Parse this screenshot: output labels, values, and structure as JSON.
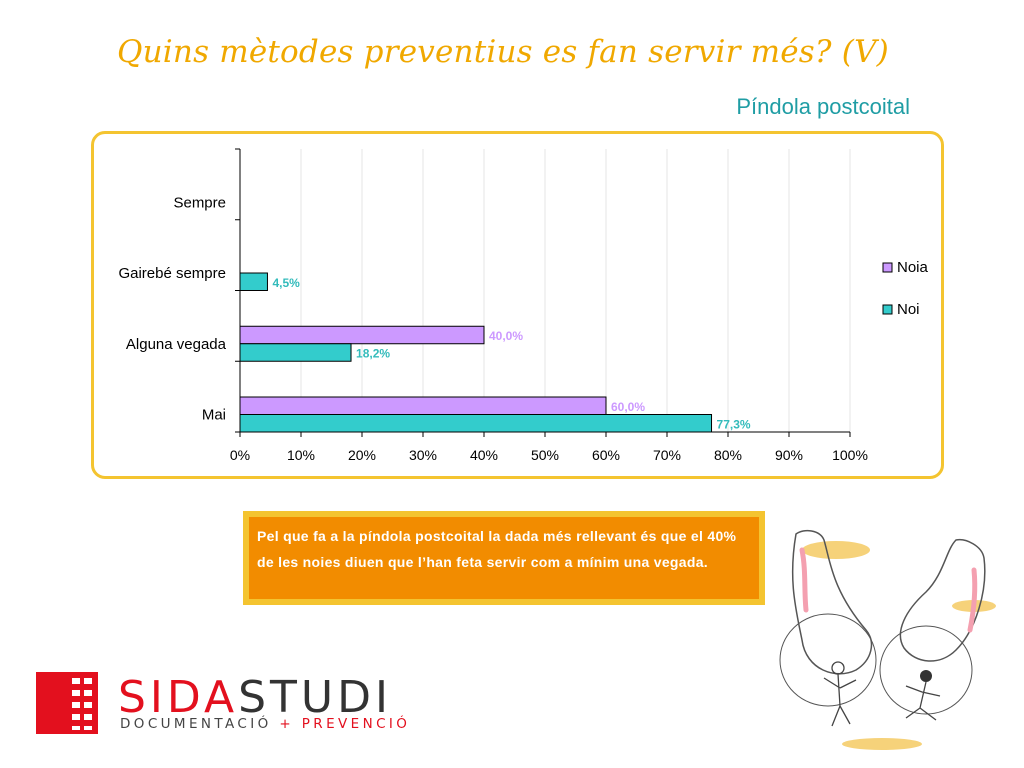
{
  "slide": {
    "title": "Quins mètodes preventius es fan servir més? (V)",
    "subtitle": "Píndola postcoital",
    "note": "Pel que fa a la píndola postcoital la dada més rellevant és que el 40% de les noies diuen que l’han feta servir com a mínim una vegada."
  },
  "logo": {
    "name_part1": "SIDA",
    "name_part2": "STUDI",
    "tag_part1": "DOCUMENTACIÓ",
    "tag_plus": "+",
    "tag_part2": "PREVENCIÓ"
  },
  "colors": {
    "noia": "#cc99ff",
    "noi": "#33cccc",
    "noia_label": "#cc99ff",
    "noi_label": "#33bbbb"
  },
  "chart_data": {
    "type": "bar",
    "orientation": "horizontal",
    "categories": [
      "Sempre",
      "Gairebé sempre",
      "Alguna vegada",
      "Mai"
    ],
    "series": [
      {
        "name": "Noia",
        "values": [
          null,
          null,
          40.0,
          60.0
        ],
        "labels": [
          "",
          "",
          "40,0%",
          "60,0%"
        ]
      },
      {
        "name": "Noi",
        "values": [
          null,
          4.5,
          18.2,
          77.3
        ],
        "labels": [
          "",
          "4,5%",
          "18,2%",
          "77,3%"
        ]
      }
    ],
    "xlim": [
      0,
      100
    ],
    "xticks": [
      "0%",
      "10%",
      "20%",
      "30%",
      "40%",
      "50%",
      "60%",
      "70%",
      "80%",
      "90%",
      "100%"
    ],
    "grid": true,
    "legend": "right"
  }
}
